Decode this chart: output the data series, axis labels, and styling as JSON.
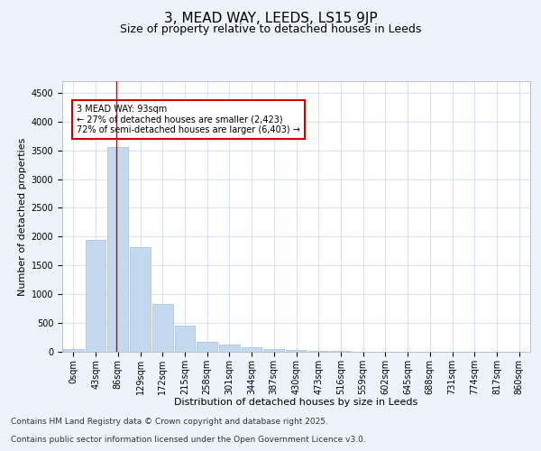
{
  "title_line1": "3, MEAD WAY, LEEDS, LS15 9JP",
  "title_line2": "Size of property relative to detached houses in Leeds",
  "xlabel": "Distribution of detached houses by size in Leeds",
  "ylabel": "Number of detached properties",
  "bar_labels": [
    "0sqm",
    "43sqm",
    "86sqm",
    "129sqm",
    "172sqm",
    "215sqm",
    "258sqm",
    "301sqm",
    "344sqm",
    "387sqm",
    "430sqm",
    "473sqm",
    "516sqm",
    "559sqm",
    "602sqm",
    "645sqm",
    "688sqm",
    "731sqm",
    "774sqm",
    "817sqm",
    "860sqm"
  ],
  "bar_values": [
    50,
    1950,
    3550,
    1820,
    830,
    450,
    170,
    120,
    85,
    50,
    25,
    15,
    8,
    4,
    3,
    2,
    1,
    1,
    0,
    0,
    0
  ],
  "bar_color": "#c5d9ee",
  "bar_edge_color": "#a0bedd",
  "vline_color": "#cc0000",
  "vline_x": 1.93,
  "annotation_text": "3 MEAD WAY: 93sqm\n← 27% of detached houses are smaller (2,423)\n72% of semi-detached houses are larger (6,403) →",
  "annotation_box_color": "#cc0000",
  "ylim": [
    0,
    4700
  ],
  "yticks": [
    0,
    500,
    1000,
    1500,
    2000,
    2500,
    3000,
    3500,
    4000,
    4500
  ],
  "bg_color": "#eef2fb",
  "plot_bg_color": "#ffffff",
  "grid_color": "#c8d4ea",
  "footer_line1": "Contains HM Land Registry data © Crown copyright and database right 2025.",
  "footer_line2": "Contains public sector information licensed under the Open Government Licence v3.0.",
  "title_fontsize": 11,
  "subtitle_fontsize": 9,
  "label_fontsize": 8,
  "tick_fontsize": 7,
  "footer_fontsize": 6.5,
  "ann_fontsize": 7
}
